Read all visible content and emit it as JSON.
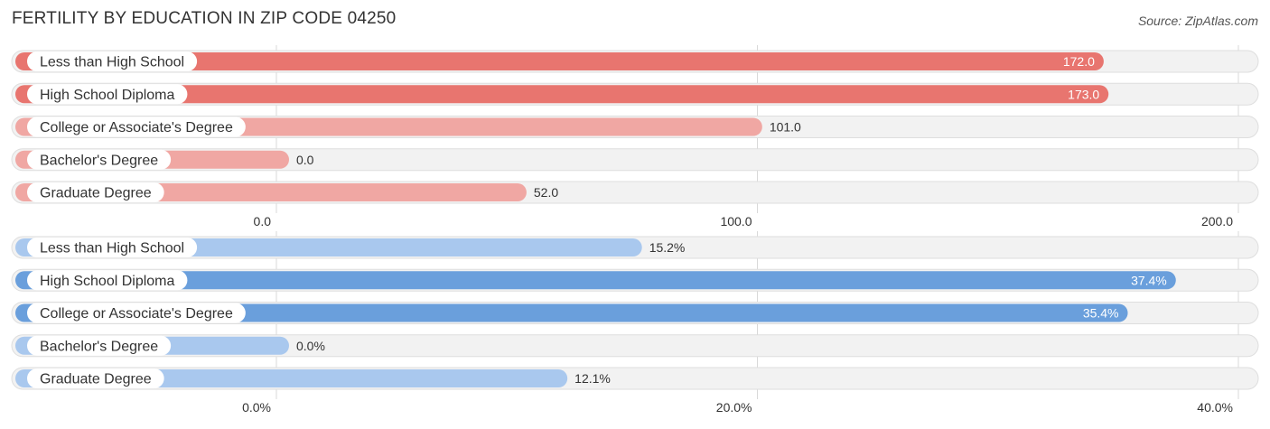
{
  "header": {
    "title": "FERTILITY BY EDUCATION IN ZIP CODE 04250",
    "source": "Source: ZipAtlas.com"
  },
  "chart_data": [
    {
      "type": "bar",
      "orientation": "horizontal",
      "categories": [
        "Less than High School",
        "High School Diploma",
        "College or Associate's Degree",
        "Bachelor's Degree",
        "Graduate Degree"
      ],
      "values": [
        172.0,
        173.0,
        101.0,
        0.0,
        52.0
      ],
      "value_labels": [
        "172.0",
        "173.0",
        "101.0",
        "0.0",
        "52.0"
      ],
      "xlim": [
        0,
        200
      ],
      "ticks": [
        0,
        100,
        200
      ],
      "tick_labels": [
        "0.0",
        "100.0",
        "200.0"
      ],
      "grid": true,
      "colors": {
        "strong": "#e8756f",
        "light": "#f0a7a3"
      }
    },
    {
      "type": "bar",
      "orientation": "horizontal",
      "categories": [
        "Less than High School",
        "High School Diploma",
        "College or Associate's Degree",
        "Bachelor's Degree",
        "Graduate Degree"
      ],
      "values": [
        15.2,
        37.4,
        35.4,
        0.0,
        12.1
      ],
      "value_labels": [
        "15.2%",
        "37.4%",
        "35.4%",
        "0.0%",
        "12.1%"
      ],
      "xlim": [
        0,
        40
      ],
      "ticks": [
        0,
        20,
        40
      ],
      "tick_labels": [
        "0.0%",
        "20.0%",
        "40.0%"
      ],
      "grid": true,
      "colors": {
        "strong": "#6a9fdc",
        "light": "#a9c8ee"
      }
    }
  ]
}
